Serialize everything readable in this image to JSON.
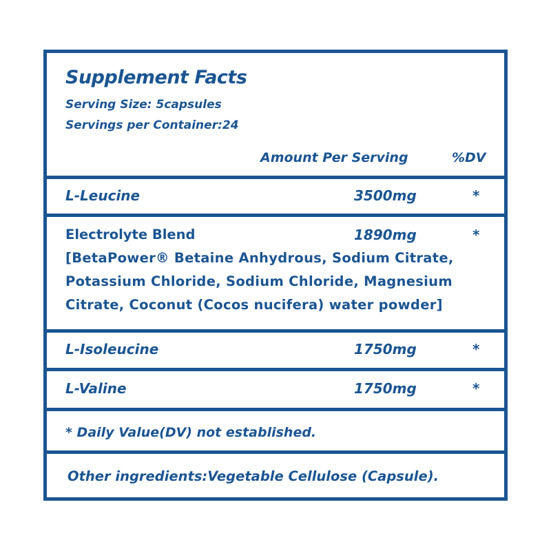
{
  "title": "Supplement Facts",
  "serving_size": "Serving Size: 5capsules",
  "servings_per_container": "Servings per Container:24",
  "header": {
    "amount": "Amount Per Serving",
    "dv": "%DV"
  },
  "rows": [
    {
      "name": "L-Leucine",
      "amount": "3500mg",
      "dv": "*"
    },
    {
      "name": "Electrolyte Blend",
      "amount": "1890mg",
      "dv": "*",
      "detail_lines": [
        "[BetaPower® Betaine Anhydrous, Sodium Citrate,",
        "Potassium Chloride, Sodium Chloride, Magnesium",
        "Citrate, Coconut (Cocos nucifera) water powder]"
      ]
    },
    {
      "name": "L-Isoleucine",
      "amount": "1750mg",
      "dv": "*"
    },
    {
      "name": "L-Valine",
      "amount": "1750mg",
      "dv": "*"
    }
  ],
  "footnote": "* Daily Value(DV) not established.",
  "other_ingredients": "Other ingredients:Vegetable Cellulose (Capsule).",
  "colors": {
    "brand_blue": "#1b5592"
  }
}
